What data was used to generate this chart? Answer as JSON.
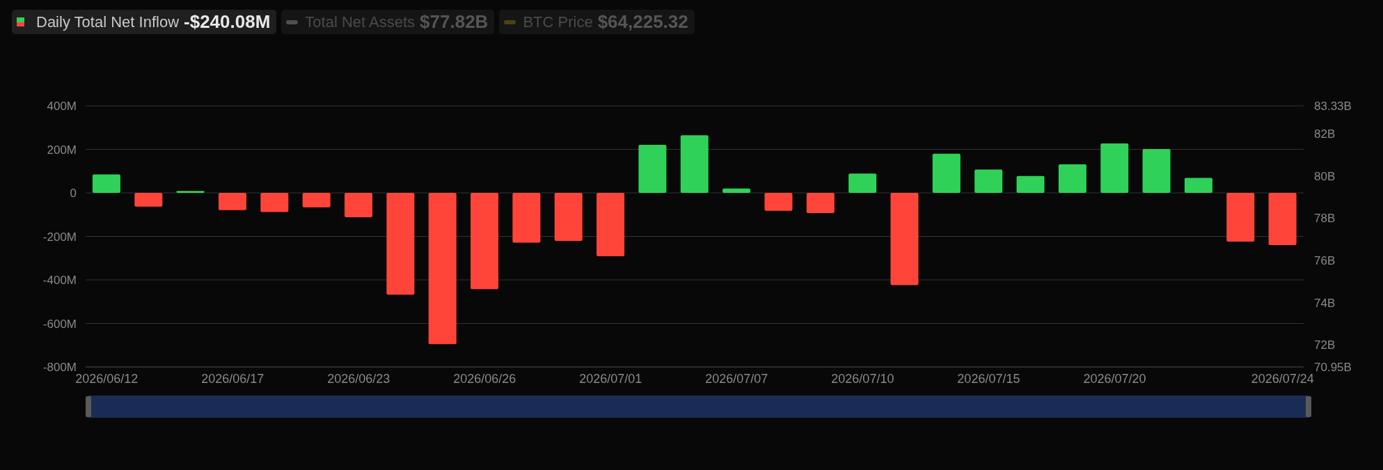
{
  "chart_data": {
    "type": "bar",
    "categories": [
      "2026/06/12",
      null,
      null,
      "2026/06/17",
      null,
      null,
      "2026/06/23",
      null,
      null,
      "2026/06/26",
      null,
      null,
      "2026/07/01",
      null,
      null,
      "2026/07/07",
      null,
      null,
      "2026/07/10",
      null,
      null,
      "2026/07/15",
      null,
      null,
      "2026/07/20",
      null,
      null,
      null,
      "2026/07/24"
    ],
    "series": [
      {
        "name": "Daily Total Net Inflow",
        "values": [
          85,
          -63,
          9,
          -79,
          -88,
          -66,
          -112,
          -468,
          -695,
          -442,
          -229,
          -221,
          -291,
          221,
          265,
          20,
          -82,
          -93,
          89,
          -424,
          180,
          107,
          78,
          131,
          227,
          202,
          69,
          -224,
          -240
        ],
        "colors": [
          "#30d158",
          "#ff453a",
          "#30d158",
          "#ff453a",
          "#ff453a",
          "#ff453a",
          "#ff453a",
          "#ff453a",
          "#ff453a",
          "#ff453a",
          "#ff453a",
          "#ff453a",
          "#ff453a",
          "#30d158",
          "#30d158",
          "#30d158",
          "#ff453a",
          "#ff453a",
          "#30d158",
          "#ff453a",
          "#30d158",
          "#30d158",
          "#30d158",
          "#30d158",
          "#30d158",
          "#30d158",
          "#30d158",
          "#ff453a",
          "#ff453a"
        ]
      },
      {
        "name": "Total Net Assets",
        "type": "line",
        "axis": "y2",
        "color": "#4f4f4f",
        "values": [
          null,
          null,
          null,
          null,
          null,
          null,
          null,
          null,
          null,
          null,
          null,
          null,
          null,
          null,
          null,
          null,
          null,
          null,
          null,
          null,
          null,
          null,
          null,
          null,
          null,
          null,
          null,
          null,
          null
        ]
      },
      {
        "name": "BTC Price",
        "type": "line",
        "color": "#4f4016",
        "values": [
          null,
          null,
          null,
          null,
          null,
          null,
          null,
          null,
          null,
          null,
          null,
          null,
          null,
          null,
          null,
          null,
          null,
          null,
          null,
          null,
          null,
          null,
          null,
          null,
          null,
          null,
          null,
          null,
          null
        ]
      }
    ],
    "annotations": [
      "-$240.08M",
      "$77.82B",
      "$64,225.32"
    ],
    "ylim": [
      -800,
      400
    ],
    "yticks": [
      {
        "value": -800,
        "label": "-800M"
      },
      {
        "value": -600,
        "label": "-600M"
      },
      {
        "value": -400,
        "label": "-400M"
      },
      {
        "value": -200,
        "label": "-200M"
      },
      0,
      {
        "value": 200,
        "label": "200M"
      },
      {
        "value": 400,
        "label": "400M"
      }
    ],
    "y2lim": [
      70.95,
      83.33
    ],
    "y2ticks": [
      {
        "value": 70.95,
        "label": "70.95B"
      },
      {
        "value": 72,
        "label": "72B"
      },
      {
        "value": 74,
        "label": "74B"
      },
      {
        "value": 76,
        "label": "76B"
      },
      {
        "value": 78,
        "label": "78B"
      },
      {
        "value": 80,
        "label": "80B"
      },
      {
        "value": 82,
        "label": "82B"
      },
      {
        "value": 83.33,
        "label": "83.33B"
      }
    ],
    "grid": "y",
    "legend": "top left"
  }
}
